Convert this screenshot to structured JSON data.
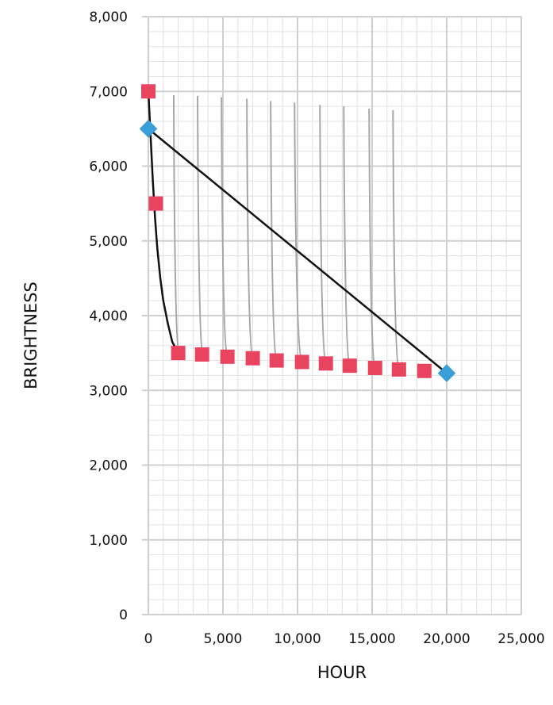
{
  "chart_data": {
    "type": "scatter",
    "title": "",
    "xlabel": "HOUR",
    "ylabel": "BRIGHTNESS",
    "xlim": [
      0,
      25000
    ],
    "ylim": [
      0,
      8000
    ],
    "x_ticks": [
      0,
      5000,
      10000,
      15000,
      20000,
      25000
    ],
    "x_tick_labels": [
      "0",
      "5,000",
      "10,000",
      "15,000",
      "20,000",
      "25,000"
    ],
    "y_ticks": [
      0,
      1000,
      2000,
      3000,
      4000,
      5000,
      6000,
      7000,
      8000
    ],
    "y_tick_labels": [
      "0",
      "1,000",
      "2,000",
      "3,000",
      "4,000",
      "5,000",
      "6,000",
      "7,000",
      "8,000"
    ],
    "grid": true,
    "colors": {
      "square_marker": "#e8435f",
      "diamond_marker": "#3a9fd8",
      "main_curve": "#111111",
      "decay_curves": "#a6a6a6",
      "grid": "#cfcfcf"
    },
    "series": [
      {
        "marker": "square",
        "points": [
          [
            0,
            7000
          ],
          [
            500,
            5500
          ],
          [
            2000,
            3500
          ],
          [
            3600,
            3480
          ],
          [
            5300,
            3450
          ],
          [
            7000,
            3430
          ],
          [
            8600,
            3400
          ],
          [
            10300,
            3380
          ],
          [
            11900,
            3360
          ],
          [
            13500,
            3330
          ],
          [
            15200,
            3300
          ],
          [
            16800,
            3280
          ],
          [
            18500,
            3260
          ]
        ]
      },
      {
        "marker": "diamond",
        "points": [
          [
            0,
            6500
          ],
          [
            20000,
            3230
          ]
        ]
      },
      {
        "line": "black",
        "points": [
          [
            0,
            7000
          ],
          [
            150,
            6400
          ],
          [
            300,
            5800
          ],
          [
            450,
            5300
          ],
          [
            600,
            4900
          ],
          [
            800,
            4500
          ],
          [
            1000,
            4200
          ],
          [
            1300,
            3900
          ],
          [
            1600,
            3650
          ],
          [
            2000,
            3500
          ]
        ]
      },
      {
        "line": "black",
        "points": [
          [
            0,
            6500
          ],
          [
            20000,
            3230
          ]
        ]
      },
      {
        "line": "gray",
        "curves": [
          {
            "start": [
              1700,
              6950
            ],
            "end": [
              2050,
              3500
            ]
          },
          {
            "start": [
              3300,
              6940
            ],
            "end": [
              3650,
              3480
            ]
          },
          {
            "start": [
              4900,
              6920
            ],
            "end": [
              5300,
              3450
            ]
          },
          {
            "start": [
              6600,
              6900
            ],
            "end": [
              7000,
              3430
            ]
          },
          {
            "start": [
              8200,
              6870
            ],
            "end": [
              8600,
              3400
            ]
          },
          {
            "start": [
              9800,
              6850
            ],
            "end": [
              10300,
              3380
            ]
          },
          {
            "start": [
              11500,
              6820
            ],
            "end": [
              11900,
              3360
            ]
          },
          {
            "start": [
              13100,
              6800
            ],
            "end": [
              13500,
              3330
            ]
          },
          {
            "start": [
              14800,
              6770
            ],
            "end": [
              15200,
              3300
            ]
          },
          {
            "start": [
              16400,
              6750
            ],
            "end": [
              16800,
              3280
            ]
          }
        ]
      }
    ]
  }
}
